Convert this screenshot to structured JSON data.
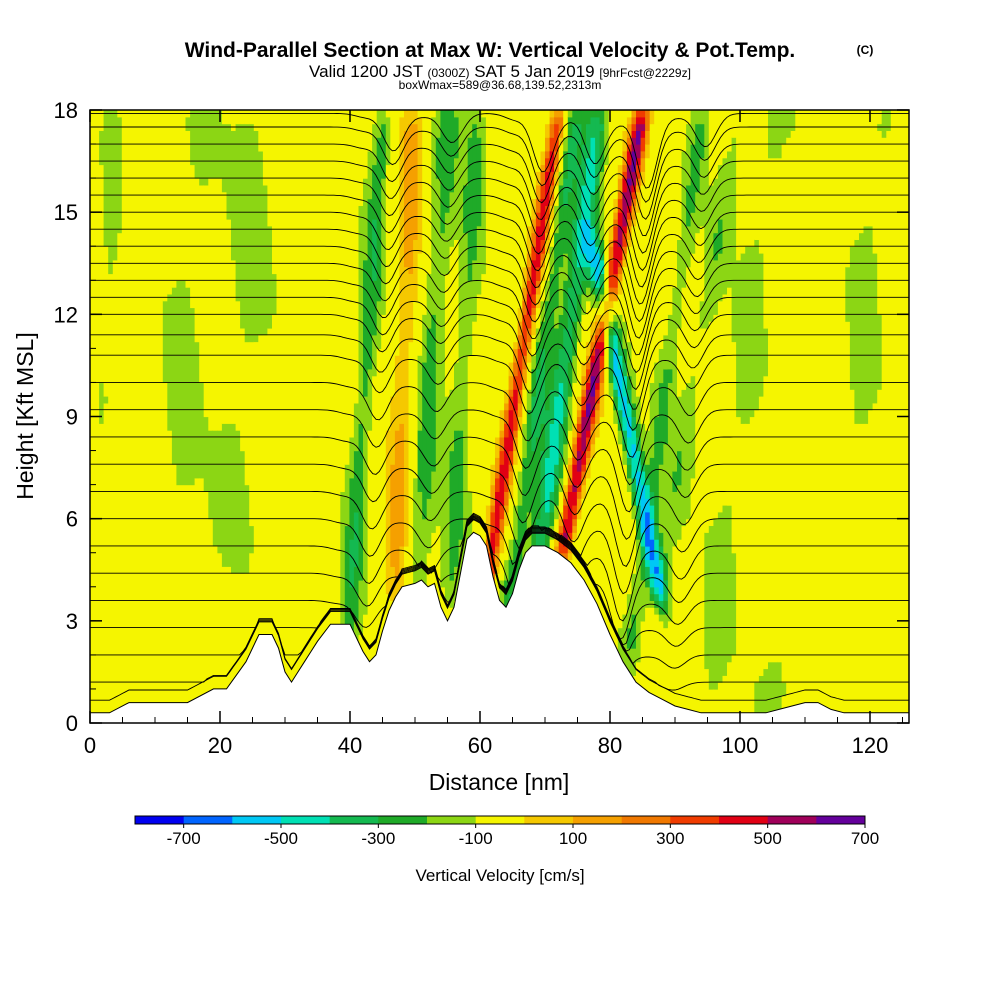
{
  "chart_data": {
    "type": "heatmap",
    "title": "Wind-Parallel Section at Max W: Vertical Velocity & Pot.Temp.",
    "copyright": "(C)",
    "subtitle_parts": [
      "Valid 1200 JST",
      "(0300Z)",
      "SAT 5 Jan 2019",
      "[9hrFcst@2229z]"
    ],
    "subtitle2": "boxWmax=589@36.68,139.52,2313m",
    "xlabel": "Distance [nm]",
    "ylabel": "Height [Kft MSL]",
    "xlim": [
      0,
      126
    ],
    "ylim": [
      0,
      18
    ],
    "xticks": [
      0,
      20,
      40,
      60,
      80,
      100,
      120
    ],
    "yticks": [
      0,
      3,
      6,
      9,
      12,
      15,
      18
    ],
    "colorbar": {
      "label": "Vertical Velocity [cm/s]",
      "ticks": [
        "-700",
        "-500",
        "-300",
        "-100",
        "100",
        "300",
        "500",
        "700"
      ],
      "colors": [
        "#0000f0",
        "#0064ff",
        "#00c8f5",
        "#00e0b4",
        "#14b950",
        "#1faa28",
        "#8cd614",
        "#f5f500",
        "#f5c800",
        "#f5a000",
        "#f07800",
        "#f03c00",
        "#e10014",
        "#a0005a",
        "#64009b"
      ]
    },
    "terrain_top_kft": [
      [
        0,
        0.3
      ],
      [
        3,
        0.3
      ],
      [
        6,
        0.6
      ],
      [
        15,
        0.6
      ],
      [
        19,
        1.0
      ],
      [
        21,
        1.0
      ],
      [
        24,
        1.8
      ],
      [
        25,
        2.2
      ],
      [
        26,
        2.6
      ],
      [
        28,
        2.6
      ],
      [
        29,
        2.2
      ],
      [
        30,
        1.5
      ],
      [
        31,
        1.2
      ],
      [
        32,
        1.5
      ],
      [
        33,
        1.8
      ],
      [
        34,
        2.1
      ],
      [
        35,
        2.4
      ],
      [
        37,
        2.9
      ],
      [
        40,
        2.9
      ],
      [
        41,
        2.5
      ],
      [
        42,
        2.1
      ],
      [
        43,
        1.8
      ],
      [
        44,
        2.0
      ],
      [
        45,
        2.7
      ],
      [
        46,
        3.3
      ],
      [
        47,
        3.7
      ],
      [
        48,
        4.0
      ],
      [
        50,
        4.1
      ],
      [
        51,
        4.2
      ],
      [
        52,
        4.0
      ],
      [
        53,
        4.1
      ],
      [
        54,
        3.4
      ],
      [
        55,
        3.0
      ],
      [
        56,
        3.4
      ],
      [
        57,
        4.4
      ],
      [
        58,
        5.4
      ],
      [
        59,
        5.6
      ],
      [
        60,
        5.5
      ],
      [
        61,
        5.2
      ],
      [
        62,
        4.3
      ],
      [
        63,
        3.6
      ],
      [
        64,
        3.4
      ],
      [
        65,
        3.8
      ],
      [
        66,
        4.5
      ],
      [
        67,
        5.0
      ],
      [
        68,
        5.2
      ],
      [
        70,
        5.2
      ],
      [
        72,
        5.0
      ],
      [
        74,
        4.7
      ],
      [
        76,
        4.2
      ],
      [
        78,
        3.5
      ],
      [
        80,
        2.6
      ],
      [
        82,
        1.8
      ],
      [
        84,
        1.2
      ],
      [
        86,
        0.9
      ],
      [
        88,
        0.7
      ],
      [
        90,
        0.5
      ],
      [
        92,
        0.4
      ],
      [
        94,
        0.3
      ],
      [
        100,
        0.3
      ],
      [
        104,
        0.3
      ],
      [
        106,
        0.4
      ],
      [
        108,
        0.5
      ],
      [
        110,
        0.6
      ],
      [
        112,
        0.6
      ],
      [
        114,
        0.4
      ],
      [
        116,
        0.3
      ],
      [
        126,
        0.3
      ]
    ],
    "w_cores": [
      {
        "x0": 65.0,
        "slope": 0.8,
        "width": 1.3,
        "w": 560,
        "zmin": 2.0,
        "zmax": 18
      },
      {
        "x0": 76.5,
        "slope": 0.95,
        "width": 1.4,
        "w": 680,
        "zmin": 5.0,
        "zmax": 18
      },
      {
        "x0": 82.5,
        "slope": -1.0,
        "width": 1.5,
        "w": -520,
        "zmin": 3.5,
        "zmax": 14
      },
      {
        "x0": 72.0,
        "slope": 0.7,
        "width": 1.8,
        "w": -380,
        "zmin": 2.0,
        "zmax": 18
      },
      {
        "x0": 68.5,
        "slope": 0.7,
        "width": 1.6,
        "w": -260,
        "zmin": 2.0,
        "zmax": 18
      },
      {
        "x0": 52.0,
        "slope": 0.35,
        "width": 2.0,
        "w": -220,
        "zmin": 3.0,
        "zmax": 18
      },
      {
        "x0": 57.0,
        "slope": 0.3,
        "width": 1.8,
        "w": -180,
        "zmin": 3.5,
        "zmax": 18
      },
      {
        "x0": 42.0,
        "slope": 0.35,
        "width": 1.6,
        "w": -240,
        "zmin": 2.0,
        "zmax": 18
      },
      {
        "x0": 48.0,
        "slope": 0.2,
        "width": 2.0,
        "w": 230,
        "zmin": 3.5,
        "zmax": 18
      },
      {
        "x0": 88.0,
        "slope": 0.7,
        "width": 1.5,
        "w": -170,
        "zmin": 2.0,
        "zmax": 18
      },
      {
        "x0": 92.0,
        "slope": 0.9,
        "width": 2.0,
        "w": -130,
        "zmin": 4.0,
        "zmax": 18
      },
      {
        "x0": 23.0,
        "slope": 0.3,
        "width": 3.5,
        "w": -110,
        "zmin": 5.0,
        "zmax": 18
      },
      {
        "x0": 14.0,
        "slope": 0.3,
        "width": 3.0,
        "w": -105,
        "zmin": 6.5,
        "zmax": 18
      },
      {
        "x0": 100.0,
        "slope": 0.6,
        "width": 2.5,
        "w": -110,
        "zmin": 0.5,
        "zmax": 18
      },
      {
        "x0": 110.0,
        "slope": 0.5,
        "width": 3.0,
        "w": -110,
        "zmin": 0.5,
        "zmax": 4.5
      },
      {
        "x0": 118.0,
        "slope": 0.4,
        "width": 2.5,
        "w": -110,
        "zmin": 8.0,
        "zmax": 18
      },
      {
        "x0": 2.0,
        "slope": 0.2,
        "width": 1.5,
        "w": -105,
        "zmin": 9.0,
        "zmax": 18
      }
    ],
    "theta_contours": {
      "base_levels_kft": [
        0.5,
        1.2,
        2.0,
        2.8,
        3.6,
        4.4,
        5.2,
        6.0,
        6.8,
        7.6,
        8.4,
        9.2,
        10.0,
        10.8,
        11.4,
        12.0,
        12.5,
        13.0,
        13.5,
        14.0,
        14.5,
        15.0,
        15.5,
        16.0,
        16.5,
        17.0,
        17.5,
        17.9
      ],
      "wave_centers": [
        43,
        52,
        66,
        74,
        82,
        91
      ],
      "wave_amps": [
        0.9,
        0.7,
        1.4,
        1.2,
        1.8,
        0.8
      ]
    }
  }
}
